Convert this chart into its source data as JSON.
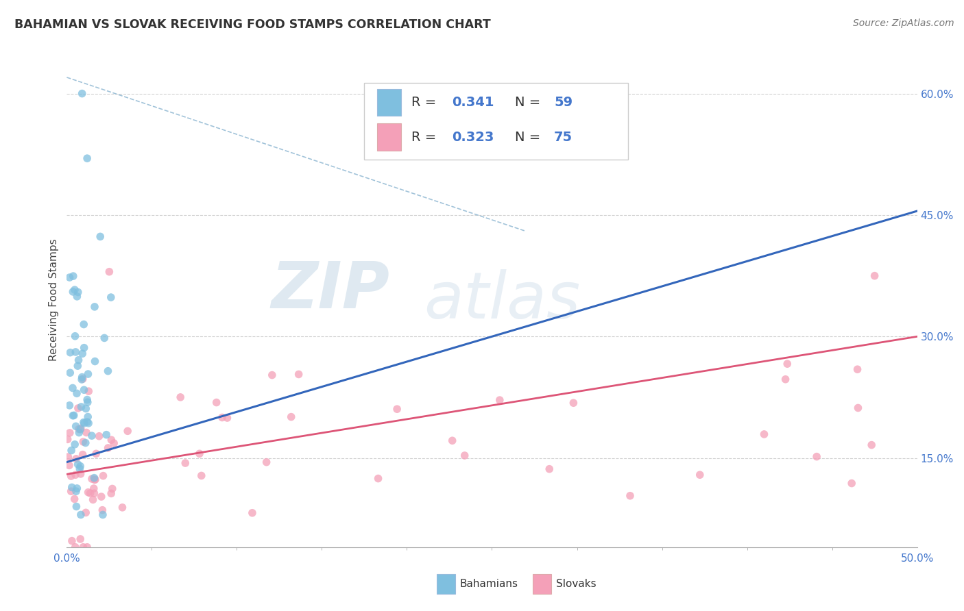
{
  "title": "BAHAMIAN VS SLOVAK RECEIVING FOOD STAMPS CORRELATION CHART",
  "source": "Source: ZipAtlas.com",
  "ylabel": "Receiving Food Stamps",
  "ytick_values": [
    0.15,
    0.3,
    0.45,
    0.6
  ],
  "xlim": [
    0.0,
    0.5
  ],
  "ylim": [
    0.04,
    0.65
  ],
  "bahamian_color": "#7fbfdf",
  "slovak_color": "#f4a0b8",
  "blue_line_color": "#3366bb",
  "pink_line_color": "#dd5577",
  "watermark_zip_color": "#b0c8e0",
  "watermark_atlas_color": "#c8d8e8",
  "background_color": "#ffffff",
  "grid_color": "#cccccc",
  "legend_r1": "0.341",
  "legend_n1": "59",
  "legend_r2": "0.323",
  "legend_n2": "75",
  "blue_line_x": [
    0.0,
    0.5
  ],
  "blue_line_y": [
    0.145,
    0.455
  ],
  "pink_line_x": [
    0.0,
    0.5
  ],
  "pink_line_y": [
    0.13,
    0.3
  ],
  "diag_line_x": [
    0.0,
    0.27
  ],
  "diag_line_y": [
    0.62,
    0.43
  ]
}
